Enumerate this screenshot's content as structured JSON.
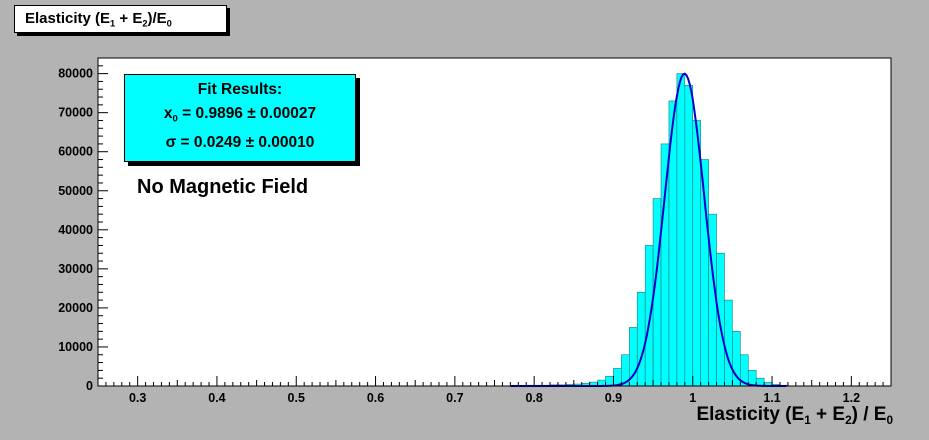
{
  "title_box": {
    "prefix": "Elasticity (E",
    "s1": "1",
    "mid": " + E",
    "s2": "2",
    "end": ")/E",
    "s3": "0"
  },
  "annotation": "No Magnetic Field",
  "fit_box": {
    "title": "Fit Results:",
    "x0_symbol": "x",
    "x0_sub": "0",
    "x0_value": " = 0.9896 ± 0.00027",
    "sigma_symbol": "σ",
    "sigma_value": " = 0.0249 ± 0.00010"
  },
  "colors": {
    "fill": "#00ffff",
    "fit_line": "#0000cc",
    "frame_bg": "#b3b3b3",
    "plot_bg": "#ffffff"
  },
  "chart_data": {
    "type": "bar",
    "histogram": true,
    "xlabel": {
      "prefix": "Elasticity (E",
      "s1": "1",
      "mid": " + E",
      "s2": "2",
      "end": ") / E",
      "s3": "0"
    },
    "ylabel": "",
    "xlim": [
      0.25,
      1.25
    ],
    "ylim": [
      0,
      84000
    ],
    "x_ticks": [
      "0.3",
      "0.4",
      "0.5",
      "0.6",
      "0.7",
      "0.8",
      "0.9",
      "1",
      "1.1",
      "1.2"
    ],
    "y_ticks": [
      "0",
      "10000",
      "20000",
      "30000",
      "40000",
      "50000",
      "60000",
      "70000",
      "80000"
    ],
    "bin_width": 0.01,
    "bin_lows": [
      0.77,
      0.78,
      0.79,
      0.8,
      0.81,
      0.82,
      0.83,
      0.84,
      0.85,
      0.86,
      0.87,
      0.88,
      0.89,
      0.9,
      0.91,
      0.92,
      0.93,
      0.94,
      0.95,
      0.96,
      0.97,
      0.98,
      0.99,
      1.0,
      1.01,
      1.02,
      1.03,
      1.04,
      1.05,
      1.06,
      1.07,
      1.08,
      1.09,
      1.1,
      1.11
    ],
    "values": [
      100,
      100,
      200,
      200,
      200,
      300,
      300,
      400,
      500,
      700,
      1000,
      1500,
      2500,
      4500,
      8000,
      15000,
      24000,
      36000,
      48000,
      62000,
      73000,
      80000,
      77000,
      68000,
      58000,
      44000,
      34000,
      22000,
      14000,
      8000,
      4000,
      2000,
      900,
      400,
      200
    ],
    "fit": {
      "x0": 0.9896,
      "sigma": 0.0249,
      "amplitude": 80000
    },
    "legend": "top-left",
    "grid": false
  }
}
